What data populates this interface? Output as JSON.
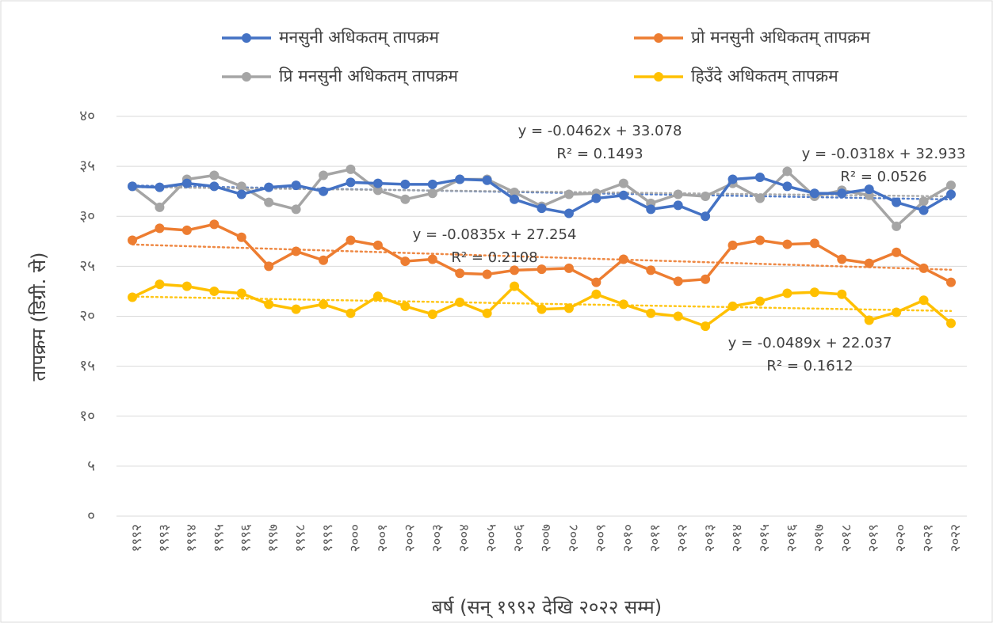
{
  "chart_data": {
    "type": "line",
    "categories": [
      "१९९२",
      "१९९३",
      "१९९४",
      "१९९५",
      "१९९६",
      "१९९७",
      "१९९८",
      "१९९९",
      "२०००",
      "२००१",
      "२००२",
      "२००३",
      "२००४",
      "२००५",
      "२००६",
      "२००७",
      "२००८",
      "२००९",
      "२०१०",
      "२०११",
      "२०१२",
      "२०१३",
      "२०१४",
      "२०१५",
      "२०१६",
      "२०१७",
      "२०१८",
      "२०१९",
      "२०२०",
      "२०२१",
      "२०२२"
    ],
    "series": [
      {
        "name": "मनसुनी अधिकतम् तापक्रम",
        "color": "#4472c4",
        "values": [
          33.0,
          32.9,
          33.3,
          33.0,
          32.2,
          32.9,
          33.1,
          32.5,
          33.4,
          33.3,
          33.2,
          33.2,
          33.7,
          33.6,
          31.7,
          30.8,
          30.3,
          31.8,
          32.1,
          30.7,
          31.1,
          30.0,
          33.7,
          33.9,
          33.0,
          32.3,
          32.3,
          32.7,
          31.4,
          30.6,
          32.2
        ]
      },
      {
        "name": "प्रो मनसुनी अधिकतम् तापक्रम",
        "color": "#ed7d31",
        "values": [
          27.6,
          28.8,
          28.6,
          29.2,
          27.9,
          25.0,
          26.5,
          25.6,
          27.6,
          27.1,
          25.5,
          25.7,
          24.3,
          24.2,
          24.6,
          24.7,
          24.8,
          23.4,
          25.7,
          24.6,
          23.5,
          23.7,
          27.1,
          27.6,
          27.2,
          27.3,
          25.7,
          25.3,
          26.4,
          24.8,
          23.4
        ]
      },
      {
        "name": "प्रि मनसुनी अधिकतम् तापक्रम",
        "color": "#a5a5a5",
        "values": [
          33.0,
          30.9,
          33.7,
          34.1,
          33.0,
          31.4,
          30.7,
          34.1,
          34.7,
          32.6,
          31.7,
          32.3,
          33.7,
          33.7,
          32.4,
          31.0,
          32.2,
          32.3,
          33.3,
          31.3,
          32.2,
          32.0,
          33.3,
          31.8,
          34.5,
          32.0,
          32.6,
          32.1,
          29.0,
          31.5,
          33.1
        ]
      },
      {
        "name": "हिउँदे अधिकतम् तापक्रम",
        "color": "#ffc000",
        "values": [
          21.9,
          23.2,
          23.0,
          22.5,
          22.3,
          21.2,
          20.7,
          21.2,
          20.3,
          22.0,
          21.0,
          20.2,
          21.4,
          20.3,
          23.0,
          20.7,
          20.8,
          22.2,
          21.2,
          20.3,
          20.0,
          19.0,
          21.0,
          21.5,
          22.3,
          22.4,
          22.2,
          19.6,
          20.4,
          21.6,
          19.3
        ]
      }
    ],
    "ylim": [
      0,
      40
    ],
    "yticks": [
      {
        "value": 0,
        "label": "०"
      },
      {
        "value": 5,
        "label": "५"
      },
      {
        "value": 10,
        "label": "१०"
      },
      {
        "value": 15,
        "label": "१५"
      },
      {
        "value": 20,
        "label": "२०"
      },
      {
        "value": 25,
        "label": "२५"
      },
      {
        "value": 30,
        "label": "३०"
      },
      {
        "value": 35,
        "label": "३५"
      },
      {
        "value": 40,
        "label": "४०"
      }
    ],
    "xlabel": "बर्ष (सन् १९९२ देखि २०२२ सम्म)",
    "ylabel": "तापक्रम (डिग्री. से)",
    "grid": true,
    "trendline": true,
    "legend": "top",
    "annotations": [
      {
        "equation": "y = -0.0462x + 33.078",
        "r_squared": "R² = 0.1493"
      },
      {
        "equation": "y = -0.0318x + 32.933",
        "r_squared": "R² = 0.0526"
      },
      {
        "equation": "y = -0.0835x + 27.254",
        "r_squared": "R² = 0.2108"
      },
      {
        "equation": "y = -0.0489x + 22.037",
        "r_squared": "R² = 0.1612"
      }
    ]
  }
}
